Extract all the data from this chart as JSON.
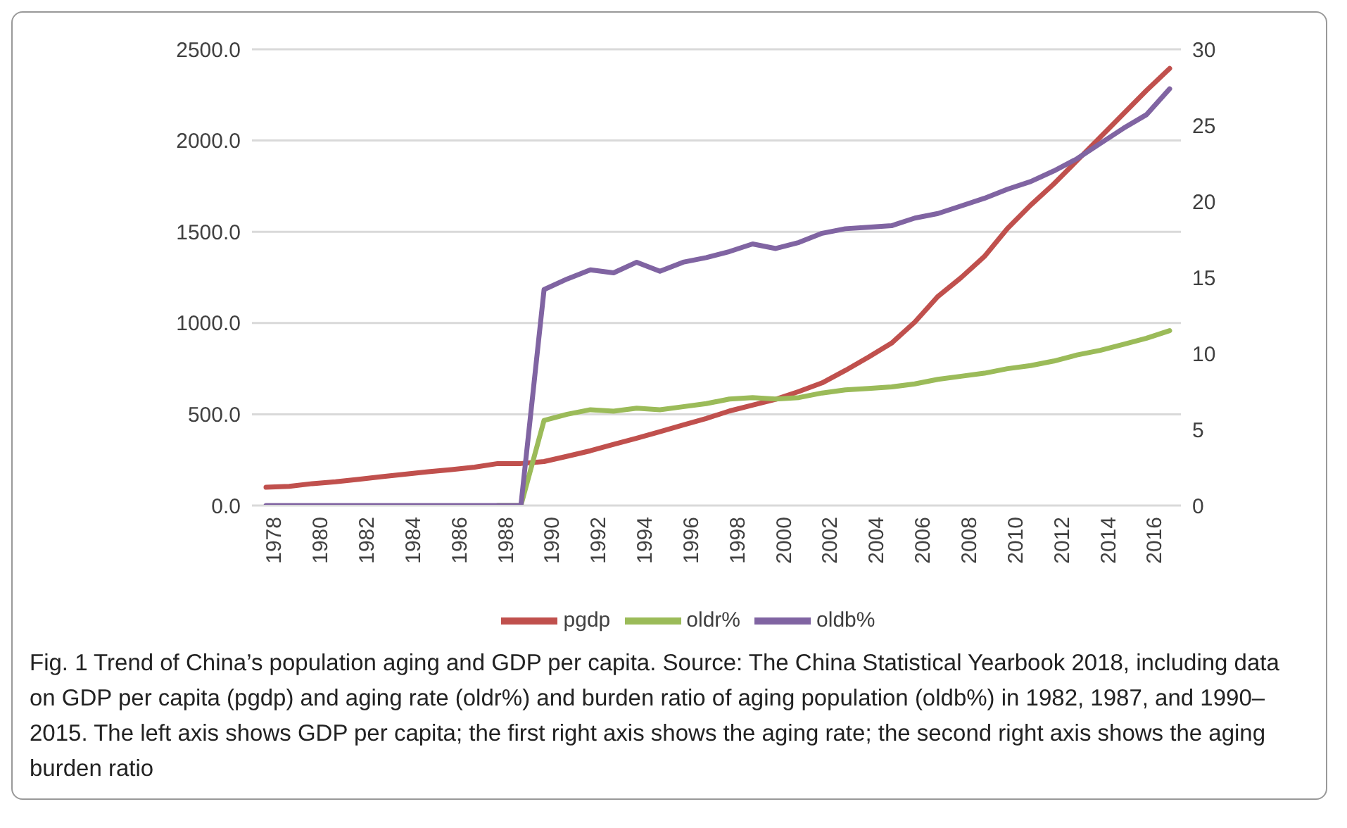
{
  "chart_data": {
    "type": "line",
    "categories": [
      "1978",
      null,
      "1980",
      null,
      "1982",
      null,
      "1984",
      null,
      "1986",
      null,
      "1988",
      null,
      "1990",
      null,
      "1992",
      null,
      "1994",
      null,
      "1996",
      null,
      "1998",
      null,
      "2000",
      null,
      "2002",
      null,
      "2004",
      null,
      "2006",
      null,
      "2008",
      null,
      "2010",
      null,
      "2012",
      null,
      "2014",
      null,
      "2016",
      null
    ],
    "series": [
      {
        "name": "pgdp",
        "color": "#c0504d",
        "values": [
          100,
          105,
          120,
          130,
          144,
          158,
          172,
          185,
          197,
          210,
          230,
          230,
          241,
          270,
          300,
          335,
          369,
          405,
          441,
          477,
          518,
          550,
          582,
          625,
          672,
          740,
          813,
          890,
          1005,
          1146,
          1249,
          1364,
          1518,
          1646,
          1762,
          1890,
          2018,
          2146,
          2274,
          2395
        ]
      },
      {
        "name": "oldr%",
        "color": "#9bbb59",
        "axis": "y2",
        "values": [
          null,
          null,
          null,
          null,
          null,
          null,
          null,
          null,
          null,
          null,
          0,
          0,
          5.6,
          6.0,
          6.3,
          6.2,
          6.4,
          6.3,
          6.5,
          6.7,
          7.0,
          7.1,
          7.0,
          7.1,
          7.4,
          7.6,
          7.7,
          7.8,
          8.0,
          8.3,
          8.5,
          8.7,
          9.0,
          9.2,
          9.5,
          9.9,
          10.2,
          10.6,
          11.0,
          11.5
        ]
      },
      {
        "name": "oldb%",
        "color": "#8064a2",
        "axis": "y2",
        "values": [
          0,
          0,
          0,
          0,
          0,
          0,
          0,
          0,
          0,
          0,
          0,
          0,
          14.2,
          14.9,
          15.5,
          15.3,
          16.0,
          15.4,
          16.0,
          16.3,
          16.7,
          17.2,
          16.9,
          17.3,
          17.9,
          18.2,
          18.3,
          18.4,
          18.9,
          19.2,
          19.7,
          20.2,
          20.8,
          21.3,
          22.0,
          22.8,
          23.8,
          24.8,
          25.7,
          27.4
        ]
      }
    ],
    "ylim": [
      0,
      2500
    ],
    "yticks": [
      {
        "value": 0,
        "label": "0.0"
      },
      {
        "value": 500,
        "label": "500.0"
      },
      {
        "value": 1000,
        "label": "1000.0"
      },
      {
        "value": 1500,
        "label": "1500.0"
      },
      {
        "value": 2000,
        "label": "2000.0"
      },
      {
        "value": 2500,
        "label": "2500.0"
      }
    ],
    "y2lim": [
      0,
      30
    ],
    "y2ticks": [
      0,
      5,
      10,
      15,
      20,
      25,
      30
    ],
    "grid": "y",
    "legend": "bottom",
    "marker": "none",
    "line_style": "solid",
    "annotations": [
      "Fig. 1 Trend of China’s population aging and GDP per capita. Source: The China Statistical Yearbook 2018, including data on GDP per capita (pgdp) and aging rate (oldr%) and burden ratio of aging population (oldb%) in 1982, 1987, and 1990–2015. The left axis shows GDP per capita; the first right axis shows the aging rate; the second right axis shows the aging burden ratio"
    ]
  }
}
